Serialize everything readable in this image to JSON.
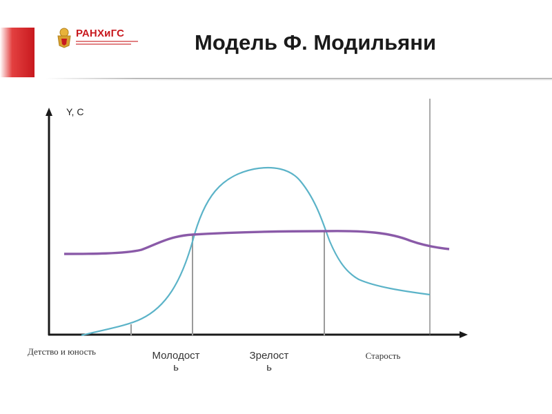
{
  "header": {
    "logo_text": "РАНХиГС",
    "title": "Модель Ф. Модильяни"
  },
  "diagram": {
    "y_axis_label": "Y, C",
    "phases": [
      {
        "label": "Детство и юность"
      },
      {
        "label": "Молодост\nь"
      },
      {
        "label": "Зрелост\nь"
      },
      {
        "label": "Старость"
      }
    ],
    "curves": [
      {
        "name": "income",
        "color": "#5bb3c8"
      },
      {
        "name": "consumption",
        "color": "#8a5aa8"
      }
    ]
  }
}
